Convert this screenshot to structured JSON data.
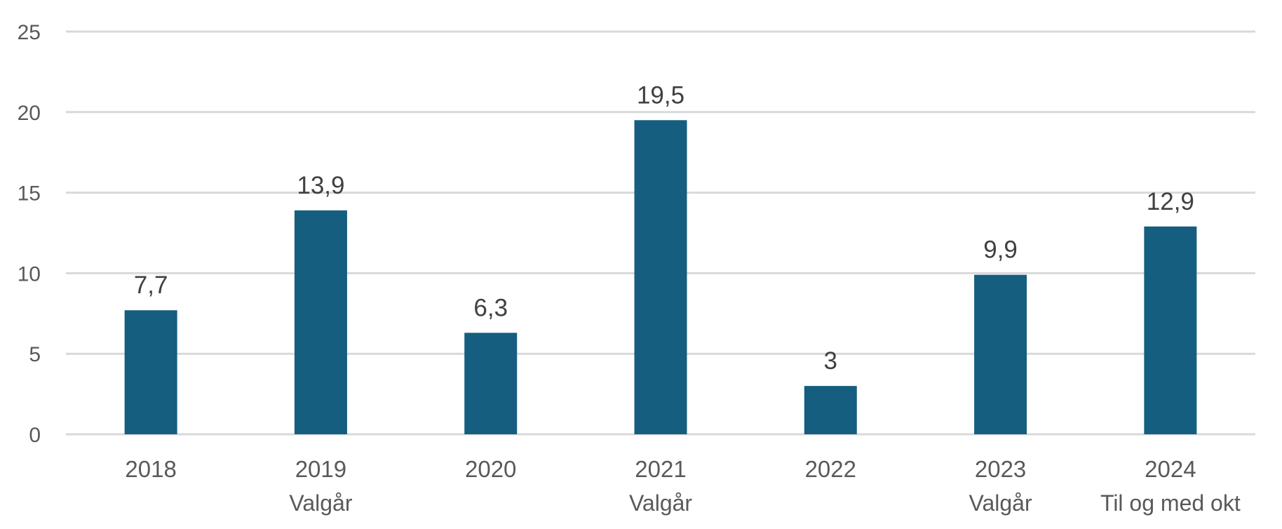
{
  "chart_data": {
    "type": "bar",
    "categories": [
      "2018",
      "2019",
      "2020",
      "2021",
      "2022",
      "2023",
      "2024"
    ],
    "category_notes": [
      "",
      "Valgår",
      "",
      "Valgår",
      "",
      "Valgår",
      "Til og med okt"
    ],
    "values": [
      7.7,
      13.9,
      6.3,
      19.5,
      3,
      9.9,
      12.9
    ],
    "value_labels": [
      "7,7",
      "13,9",
      "6,3",
      "19,5",
      "3",
      "9,9",
      "12,9"
    ],
    "title": "",
    "xlabel": "",
    "ylabel": "",
    "ylim": [
      0,
      25
    ],
    "yticks": [
      0,
      5,
      10,
      15,
      20,
      25
    ],
    "grid": true,
    "legend": "none",
    "colors": {
      "bar": "#155e80",
      "grid": "#d9d9d9",
      "tick_text": "#595959",
      "label_text": "#404040"
    }
  }
}
